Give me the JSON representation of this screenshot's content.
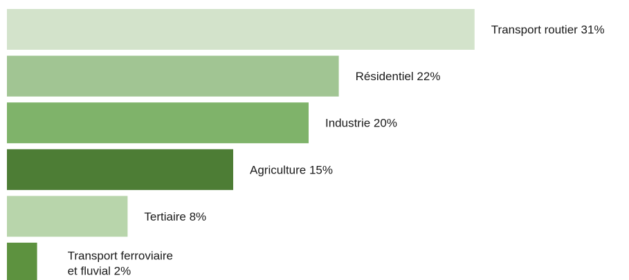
{
  "chart_data": {
    "type": "bar",
    "orientation": "horizontal",
    "categories": [
      "Transport routier",
      "Résidentiel",
      "Industrie",
      "Agriculture",
      "Tertiaire",
      "Transport ferroviaire et fluvial"
    ],
    "values": [
      31,
      22,
      20,
      15,
      8,
      2
    ],
    "labels": [
      [
        "Transport routier 31%"
      ],
      [
        "Résidentiel 22%"
      ],
      [
        "Industrie 20%"
      ],
      [
        "Agriculture 15%"
      ],
      [
        "Tertiaire 8%"
      ],
      [
        "Transport ferroviaire",
        "et fluvial 2%"
      ]
    ],
    "unit": "%",
    "colors": [
      "#d3e3cb",
      "#a1c593",
      "#7fb36a",
      "#4d7d35",
      "#b8d5ab",
      "#5d923f"
    ],
    "grid": false,
    "legend": "none",
    "title": "",
    "xlabel": "",
    "ylabel": ""
  }
}
